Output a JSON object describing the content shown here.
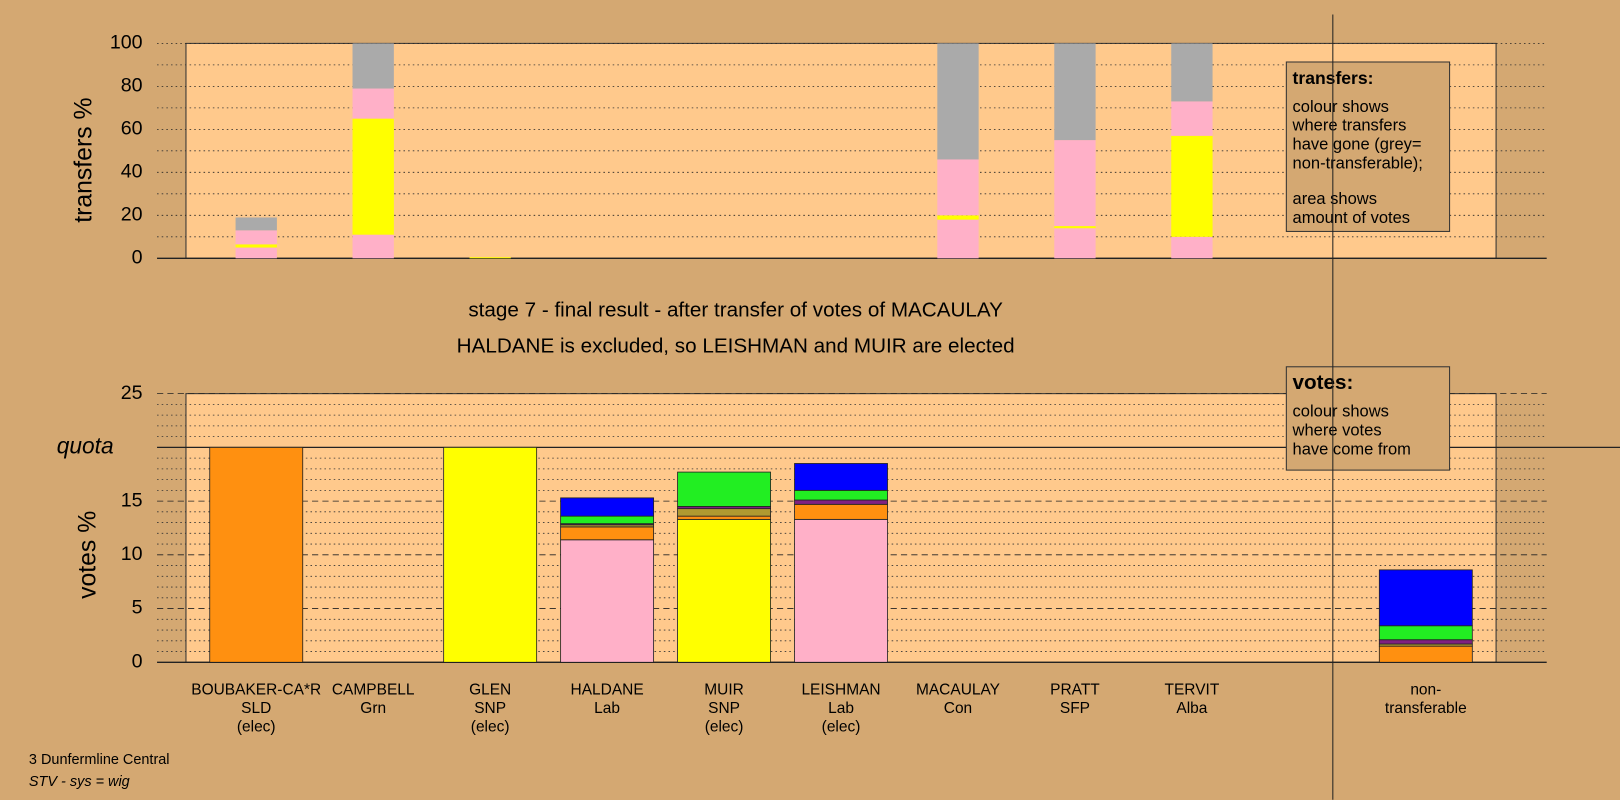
{
  "chart_data": [
    {
      "type": "bar",
      "stacked": true,
      "ylabel": "transfers %",
      "ylim": [
        0,
        100
      ],
      "yticks": [
        0,
        20,
        40,
        60,
        80,
        100
      ],
      "grid": true,
      "series": [
        {
          "color": "#ffb0c8",
          "values": [
            5,
            11,
            0,
            null,
            null,
            null,
            18,
            14,
            10,
            null
          ]
        },
        {
          "color": "#ffff00",
          "values": [
            1.5,
            54,
            0.5,
            null,
            null,
            null,
            2,
            1,
            47,
            null
          ]
        },
        {
          "color": "#ffb0c8",
          "values": [
            6.5,
            14,
            0,
            null,
            null,
            null,
            26,
            40,
            16,
            null
          ]
        },
        {
          "color": "#aaaaaa",
          "values": [
            6,
            21,
            0,
            null,
            null,
            null,
            54,
            45,
            27,
            null
          ]
        }
      ],
      "legend_title": "transfers:",
      "legend_text": [
        [
          "colour shows",
          "where transfers",
          "have gone (grey=",
          "non-transferable);"
        ],
        [
          "area shows",
          "amount of votes"
        ]
      ]
    },
    {
      "type": "bar",
      "stacked": true,
      "title": "stage 7 - final result - after transfer of votes of MACAULAY",
      "subtitle": "HALDANE is excluded, so LEISHMAN and MUIR are elected",
      "ylabel": "votes %",
      "ylim": [
        0,
        25
      ],
      "yticks": [
        0,
        5,
        10,
        15,
        {
          "value": 20,
          "label": "quota"
        },
        25
      ],
      "grid": true,
      "categories": [
        [
          "BOUBAKER-CA*R",
          "SLD",
          "(elec)"
        ],
        [
          "CAMPBELL",
          "Grn"
        ],
        [
          "GLEN",
          "SNP",
          "(elec)"
        ],
        [
          "HALDANE",
          "Lab"
        ],
        [
          "MUIR",
          "SNP",
          "(elec)"
        ],
        [
          "LEISHMAN",
          "Lab",
          "(elec)"
        ],
        [
          "MACAULAY",
          "Con"
        ],
        [
          "PRATT",
          "SFP"
        ],
        [
          "TERVIT",
          "Alba"
        ],
        [
          "non-",
          "transferable"
        ]
      ],
      "series": [
        {
          "color": "#ffb0c8",
          "values": [
            0,
            0,
            0,
            11.4,
            0,
            13.3,
            0,
            0,
            0,
            0
          ]
        },
        {
          "color": "#ffff00",
          "values": [
            0,
            0,
            20,
            0,
            13.3,
            0,
            0,
            0,
            0,
            0
          ]
        },
        {
          "color": "#ff9010",
          "values": [
            20,
            0,
            0,
            1.2,
            0.3,
            1.4,
            0,
            0,
            0,
            1.5
          ]
        },
        {
          "color": "#b09a30",
          "values": [
            0,
            0,
            0,
            0.2,
            0.7,
            0,
            0,
            0,
            0,
            0.2
          ]
        },
        {
          "color": "#802080",
          "values": [
            0,
            0,
            0,
            0.1,
            0.2,
            0.4,
            0,
            0,
            0,
            0.4
          ]
        },
        {
          "color": "#22ee22",
          "values": [
            0,
            0,
            0,
            0.7,
            3.2,
            0.9,
            0,
            0,
            0,
            1.3
          ]
        },
        {
          "color": "#0000ff",
          "values": [
            0,
            0,
            0,
            1.7,
            0,
            2.5,
            0,
            0,
            0,
            5.2
          ]
        }
      ],
      "legend_title": "votes:",
      "legend_text": [
        [
          "colour shows",
          "where votes",
          "have come from"
        ]
      ]
    }
  ],
  "footer": {
    "constituency": "3 Dunfermline Central",
    "system": "STV - sys = wig"
  }
}
